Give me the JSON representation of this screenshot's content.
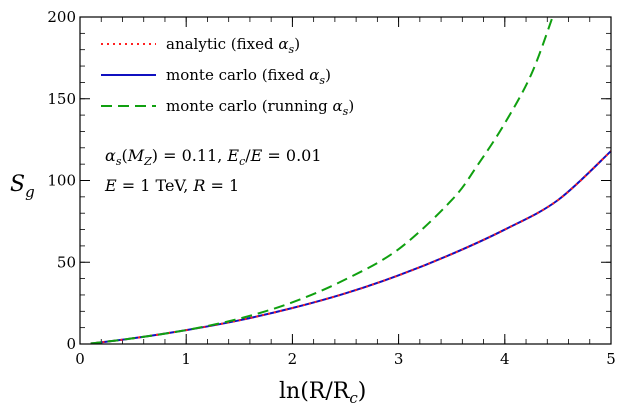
{
  "chart_data": {
    "type": "line",
    "xlabel": "ln(R/R",
    "xlabel_sub": "c",
    "xlabel_close": ")",
    "ylabel": "S",
    "ylabel_sub": "g",
    "xlim": [
      0,
      5
    ],
    "ylim": [
      0,
      200
    ],
    "x_ticks": [
      0,
      1,
      2,
      3,
      4,
      5
    ],
    "x_tick_labels": [
      "0",
      "1",
      "2",
      "3",
      "4",
      "5"
    ],
    "y_ticks": [
      0,
      50,
      100,
      150,
      200
    ],
    "y_tick_labels": [
      "0",
      "50",
      "100",
      "150",
      "200"
    ],
    "x_minor_step": 0.2,
    "y_minor_step": 10,
    "grid": false,
    "legend_position": "top-left",
    "legend": [
      {
        "text": "analytic (fixed ",
        "sym": "α",
        "sub": "s",
        "close": ")",
        "color": "#ff2020",
        "dash": "dotted"
      },
      {
        "text": "monte carlo (fixed ",
        "sym": "α",
        "sub": "s",
        "close": ")",
        "color": "#1010c0",
        "dash": "solid"
      },
      {
        "text": "monte carlo (running ",
        "sym": "α",
        "sub": "s",
        "close": ")",
        "color": "#10a010",
        "dash": "dashed"
      }
    ],
    "annotations": {
      "line1": {
        "a": "α",
        "a_sub": "s",
        "a_mid": "(",
        "m": "M",
        "m_sub": "Z",
        "val": ") = 0.11, ",
        "e": "E",
        "e_sub": "c",
        "e_rest": "/",
        "e2": "E",
        "tail": " = 0.01"
      },
      "line2": {
        "e": "E",
        "mid": " = 1 TeV, ",
        "r": "R",
        "tail": " = 1"
      }
    },
    "series": [
      {
        "color": "#ff2020",
        "dash": "dotted",
        "x": [
          0.1,
          0.5,
          1.0,
          1.5,
          2.0,
          2.5,
          3.0,
          3.5,
          4.0,
          4.5,
          5.0
        ],
        "y": [
          0.3,
          3.5,
          8.5,
          14.5,
          22.0,
          31.0,
          42.0,
          55.0,
          70.0,
          88.0,
          118.0
        ]
      },
      {
        "color": "#1010c0",
        "dash": "solid",
        "x": [
          0.1,
          0.5,
          1.0,
          1.5,
          2.0,
          2.5,
          3.0,
          3.5,
          4.0,
          4.5,
          5.0
        ],
        "y": [
          0.3,
          3.5,
          8.5,
          14.5,
          22.0,
          31.0,
          42.0,
          55.0,
          70.0,
          88.0,
          118.0
        ]
      },
      {
        "color": "#10a010",
        "dash": "dashed",
        "x": [
          0.1,
          0.5,
          1.0,
          1.5,
          2.0,
          2.5,
          3.0,
          3.5,
          3.75,
          4.0,
          4.25,
          4.45
        ],
        "y": [
          0.3,
          3.5,
          8.5,
          15.5,
          25.5,
          39.5,
          58.0,
          88.0,
          110.0,
          135.0,
          165.0,
          200.0
        ]
      }
    ]
  }
}
